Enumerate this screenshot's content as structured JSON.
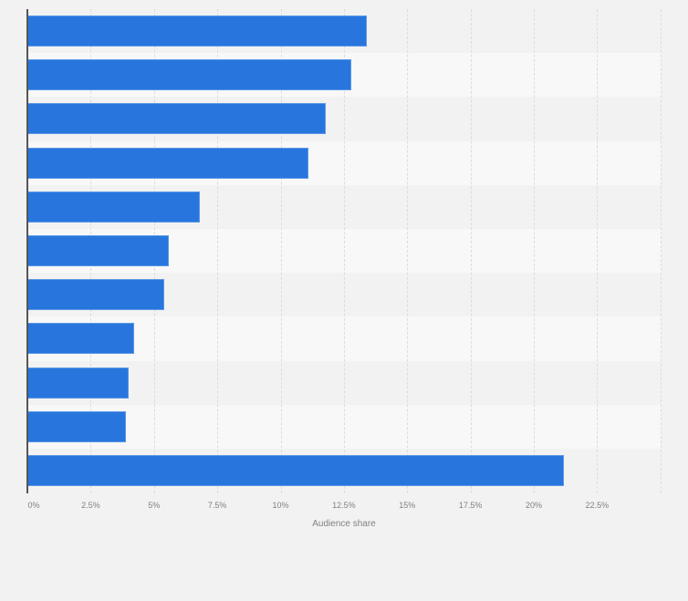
{
  "chart_data": {
    "type": "bar",
    "orientation": "horizontal",
    "title": "",
    "xlabel": "Audience share",
    "ylabel": "",
    "categories": [
      "",
      "",
      "",
      "",
      "",
      "",
      "",
      "",
      "",
      "",
      ""
    ],
    "values": [
      13.4,
      12.8,
      11.8,
      11.1,
      6.8,
      5.6,
      5.4,
      4.2,
      4.0,
      3.9,
      21.2
    ],
    "unit": "%",
    "xlim": [
      0,
      25
    ],
    "x_ticks": [
      "0%",
      "2.5%",
      "5%",
      "7.5%",
      "10%",
      "12.5%",
      "15%",
      "17.5%",
      "20%",
      "22.5%"
    ],
    "grid": true,
    "legend": null,
    "bar_color": "#2876dd"
  },
  "axis": {
    "x_title": "Audience share",
    "ticks": [
      "0%",
      "2.5%",
      "5%",
      "7.5%",
      "10%",
      "12.5%",
      "15%",
      "17.5%",
      "20%",
      "22.5%"
    ]
  }
}
